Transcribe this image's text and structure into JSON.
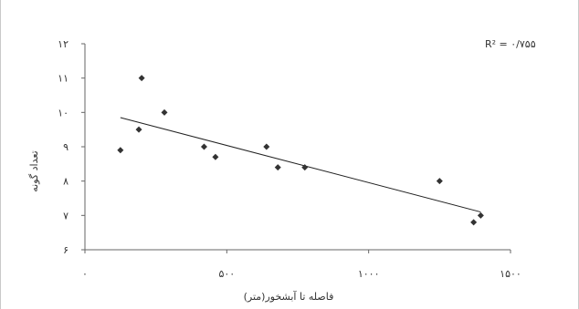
{
  "chart_data": {
    "type": "scatter",
    "title": "",
    "xlabel": "فاصله تا آبشخور(متر)",
    "ylabel": "تعداد گونه",
    "xlim": [
      0,
      1500
    ],
    "ylim": [
      6,
      12
    ],
    "x_ticks": [
      0,
      500,
      1000,
      1500
    ],
    "y_ticks": [
      6,
      7,
      8,
      9,
      10,
      11,
      12
    ],
    "x_tick_labels": [
      "۰",
      "۵۰۰",
      "۱۰۰۰",
      "۱۵۰۰"
    ],
    "y_tick_labels": [
      "۶",
      "۷",
      "۸",
      "۹",
      "۱۰",
      "۱۱",
      "۱۲"
    ],
    "grid": false,
    "series": [
      {
        "points": [
          {
            "x": 125,
            "y": 8.9
          },
          {
            "x": 190,
            "y": 9.5
          },
          {
            "x": 200,
            "y": 11.0
          },
          {
            "x": 280,
            "y": 10.0
          },
          {
            "x": 420,
            "y": 9.0
          },
          {
            "x": 460,
            "y": 8.7
          },
          {
            "x": 640,
            "y": 9.0
          },
          {
            "x": 680,
            "y": 8.4
          },
          {
            "x": 775,
            "y": 8.4
          },
          {
            "x": 1250,
            "y": 8.0
          },
          {
            "x": 1370,
            "y": 6.8
          },
          {
            "x": 1395,
            "y": 7.0
          }
        ],
        "color": "#333333"
      }
    ],
    "trendline": {
      "type": "linear",
      "x_start": 125,
      "y_start": 9.85,
      "x_end": 1395,
      "y_end": 7.1,
      "color": "#222222"
    },
    "annotation": "R² = ۰/۷۵۵"
  }
}
